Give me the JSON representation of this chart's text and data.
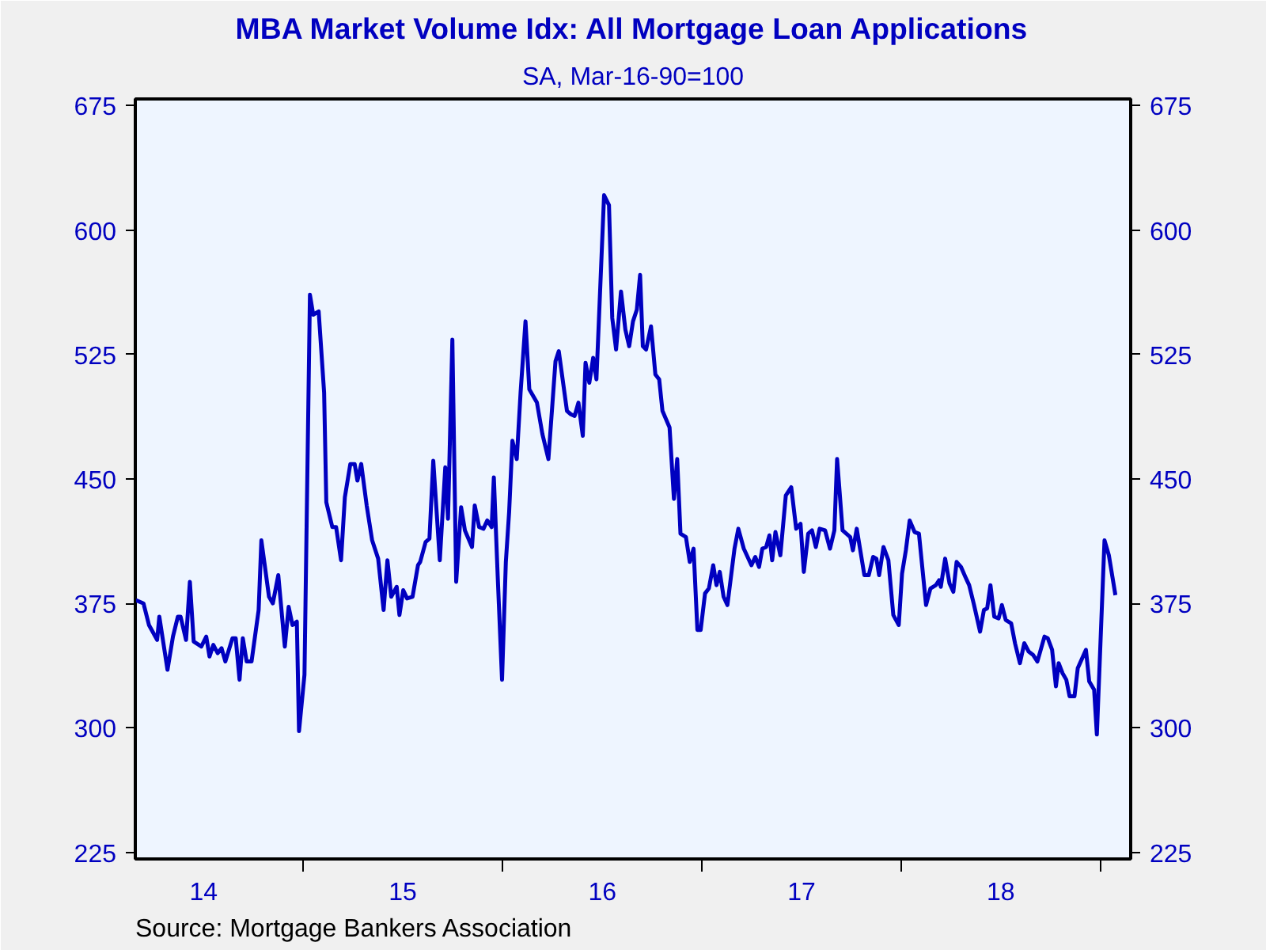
{
  "chart_data": {
    "type": "line",
    "title": "MBA Market Volume Idx: All Mortgage Loan Applications",
    "subtitle": "SA, Mar-16-90=100",
    "annotations": [
      "Source:  Mortgage Bankers Association"
    ],
    "series": [
      {
        "color": "#0000c0",
        "x": [
          "2014-02-28",
          "2014-03-14",
          "2014-03-24",
          "2014-04-08",
          "2014-04-12",
          "2014-04-27",
          "2014-05-07",
          "2014-05-16",
          "2014-05-21",
          "2014-05-31",
          "2014-06-07",
          "2014-06-14",
          "2014-06-28",
          "2014-07-07",
          "2014-07-13",
          "2014-07-20",
          "2014-07-28",
          "2014-08-04",
          "2014-08-11",
          "2014-08-24",
          "2014-08-30",
          "2014-09-06",
          "2014-09-12",
          "2014-09-19",
          "2014-09-28",
          "2014-10-11",
          "2014-10-16",
          "2014-10-23",
          "2014-10-30",
          "2014-11-06",
          "2014-11-16",
          "2014-11-28",
          "2014-12-05",
          "2014-12-12",
          "2014-12-20",
          "2014-12-24",
          "2015-01-03",
          "2015-01-13",
          "2015-01-19",
          "2015-01-29",
          "2015-02-08",
          "2015-02-12",
          "2015-02-23",
          "2015-03-02",
          "2015-03-11",
          "2015-03-18",
          "2015-03-28",
          "2015-04-05",
          "2015-04-10",
          "2015-04-17",
          "2015-04-27",
          "2015-05-07",
          "2015-05-18",
          "2015-05-28",
          "2015-06-04",
          "2015-06-11",
          "2015-06-21",
          "2015-06-26",
          "2015-07-03",
          "2015-07-10",
          "2015-07-20",
          "2015-07-30",
          "2015-08-03",
          "2015-08-13",
          "2015-08-20",
          "2015-08-27",
          "2015-09-08",
          "2015-09-18",
          "2015-09-23",
          "2015-10-01",
          "2015-10-08",
          "2015-10-17",
          "2015-10-24",
          "2015-11-06",
          "2015-11-11",
          "2015-11-19",
          "2015-11-27",
          "2015-12-04",
          "2015-12-12",
          "2015-12-16",
          "2015-12-23",
          "2015-12-31",
          "2016-01-07",
          "2016-01-13",
          "2016-01-19",
          "2016-01-27",
          "2016-02-03",
          "2016-02-12",
          "2016-02-19",
          "2016-03-04",
          "2016-03-14",
          "2016-03-25",
          "2016-04-07",
          "2016-04-13",
          "2016-04-28",
          "2016-05-05",
          "2016-05-12",
          "2016-05-19",
          "2016-05-27",
          "2016-06-01",
          "2016-06-08",
          "2016-06-15",
          "2016-06-21",
          "2016-07-05",
          "2016-07-14",
          "2016-07-20",
          "2016-07-27",
          "2016-08-05",
          "2016-08-13",
          "2016-08-20",
          "2016-08-27",
          "2016-09-03",
          "2016-09-09",
          "2016-09-14",
          "2016-09-20",
          "2016-09-29",
          "2016-10-07",
          "2016-10-14",
          "2016-10-20",
          "2016-11-02",
          "2016-11-10",
          "2016-11-16",
          "2016-11-22",
          "2016-12-02",
          "2016-12-09",
          "2016-12-16",
          "2016-12-23",
          "2016-12-29",
          "2017-01-06",
          "2017-01-13",
          "2017-01-21",
          "2017-01-27",
          "2017-02-02",
          "2017-02-09",
          "2017-02-16",
          "2017-03-01",
          "2017-03-08",
          "2017-03-18",
          "2017-04-01",
          "2017-04-08",
          "2017-04-15",
          "2017-04-21",
          "2017-04-28",
          "2017-05-04",
          "2017-05-09",
          "2017-05-15",
          "2017-05-24",
          "2017-06-03",
          "2017-06-13",
          "2017-06-22",
          "2017-06-30",
          "2017-07-06",
          "2017-07-14",
          "2017-07-21",
          "2017-07-28",
          "2017-08-04",
          "2017-08-14",
          "2017-08-23",
          "2017-08-31",
          "2017-09-05",
          "2017-09-15",
          "2017-09-29",
          "2017-10-04",
          "2017-10-11",
          "2017-10-25",
          "2017-11-02",
          "2017-11-10",
          "2017-11-16",
          "2017-11-21",
          "2017-11-29",
          "2017-12-08",
          "2017-12-17",
          "2017-12-27",
          "2018-01-02",
          "2018-01-09",
          "2018-01-16",
          "2018-01-25",
          "2018-02-02",
          "2018-02-15",
          "2018-02-23",
          "2018-03-05",
          "2018-03-11",
          "2018-03-14",
          "2018-03-22",
          "2018-03-30",
          "2018-04-06",
          "2018-04-12",
          "2018-04-20",
          "2018-04-28",
          "2018-05-05",
          "2018-05-14",
          "2018-05-25",
          "2018-06-01",
          "2018-06-07",
          "2018-06-13",
          "2018-06-20",
          "2018-06-28",
          "2018-07-04",
          "2018-07-11",
          "2018-07-21",
          "2018-07-28",
          "2018-08-06",
          "2018-08-14",
          "2018-08-22",
          "2018-08-30",
          "2018-09-07",
          "2018-09-20",
          "2018-09-26",
          "2018-10-04",
          "2018-10-11",
          "2018-10-16",
          "2018-10-23",
          "2018-10-30",
          "2018-11-05",
          "2018-11-14",
          "2018-11-20",
          "2018-12-05",
          "2018-12-11",
          "2018-12-20",
          "2018-12-25",
          "2019-01-08",
          "2019-01-16",
          "2019-01-28"
        ],
        "values": [
          377,
          375,
          362,
          353,
          367,
          335,
          355,
          367,
          367,
          353,
          388,
          352,
          349,
          355,
          343,
          350,
          345,
          348,
          340,
          354,
          354,
          329,
          354,
          340,
          340,
          371,
          413,
          396,
          379,
          375,
          392,
          349,
          373,
          362,
          364,
          298,
          332,
          561,
          549,
          551,
          502,
          436,
          421,
          421,
          401,
          439,
          459,
          459,
          449,
          459,
          434,
          413,
          402,
          371,
          401,
          379,
          385,
          368,
          383,
          378,
          379,
          398,
          400,
          412,
          414,
          461,
          401,
          457,
          426,
          534,
          388,
          433,
          419,
          409,
          434,
          421,
          420,
          425,
          421,
          451,
          392,
          329,
          400,
          430,
          473,
          462,
          502,
          545,
          504,
          496,
          477,
          462,
          521,
          527,
          491,
          489,
          488,
          496,
          476,
          520,
          508,
          523,
          510,
          621,
          615,
          547,
          528,
          563,
          540,
          530,
          545,
          552,
          573,
          530,
          528,
          542,
          513,
          510,
          491,
          481,
          438,
          462,
          417,
          415,
          400,
          408,
          359,
          359,
          381,
          384,
          398,
          386,
          394,
          379,
          374,
          408,
          420,
          408,
          398,
          403,
          397,
          408,
          409,
          416,
          401,
          418,
          404,
          440,
          445,
          420,
          423,
          394,
          417,
          419,
          409,
          420,
          419,
          408,
          419,
          462,
          419,
          415,
          407,
          420,
          392,
          392,
          403,
          402,
          392,
          409,
          401,
          368,
          362,
          393,
          407,
          425,
          418,
          417,
          374,
          384,
          386,
          389,
          385,
          402,
          387,
          382,
          400,
          397,
          391,
          386,
          374,
          358,
          371,
          372,
          386,
          367,
          366,
          374,
          365,
          363,
          351,
          339,
          351,
          346,
          344,
          340,
          355,
          354,
          347,
          325,
          339,
          333,
          329,
          319,
          319,
          336,
          347,
          328,
          323,
          296,
          413,
          404,
          380
        ]
      }
    ],
    "xlim": [
      "2014-02-27",
      "2019-02-25"
    ],
    "xticks": [
      {
        "value": "2014-07-02",
        "label": "14"
      },
      {
        "value": "2015-01-01",
        "label": null
      },
      {
        "value": "2015-07-02",
        "label": "15"
      },
      {
        "value": "2016-01-01",
        "label": null
      },
      {
        "value": "2016-07-02",
        "label": "16"
      },
      {
        "value": "2017-01-01",
        "label": null
      },
      {
        "value": "2017-07-02",
        "label": "17"
      },
      {
        "value": "2018-01-01",
        "label": null
      },
      {
        "value": "2018-07-02",
        "label": "18"
      },
      {
        "value": "2019-01-01",
        "label": null
      }
    ],
    "ylim": [
      221,
      679
    ],
    "yticks": [
      225,
      300,
      375,
      450,
      525,
      600,
      675
    ],
    "y2lim": [
      221,
      679
    ],
    "y2ticks": [
      225,
      300,
      375,
      450,
      525,
      600,
      675
    ],
    "grid": false,
    "line_style": "solid"
  }
}
